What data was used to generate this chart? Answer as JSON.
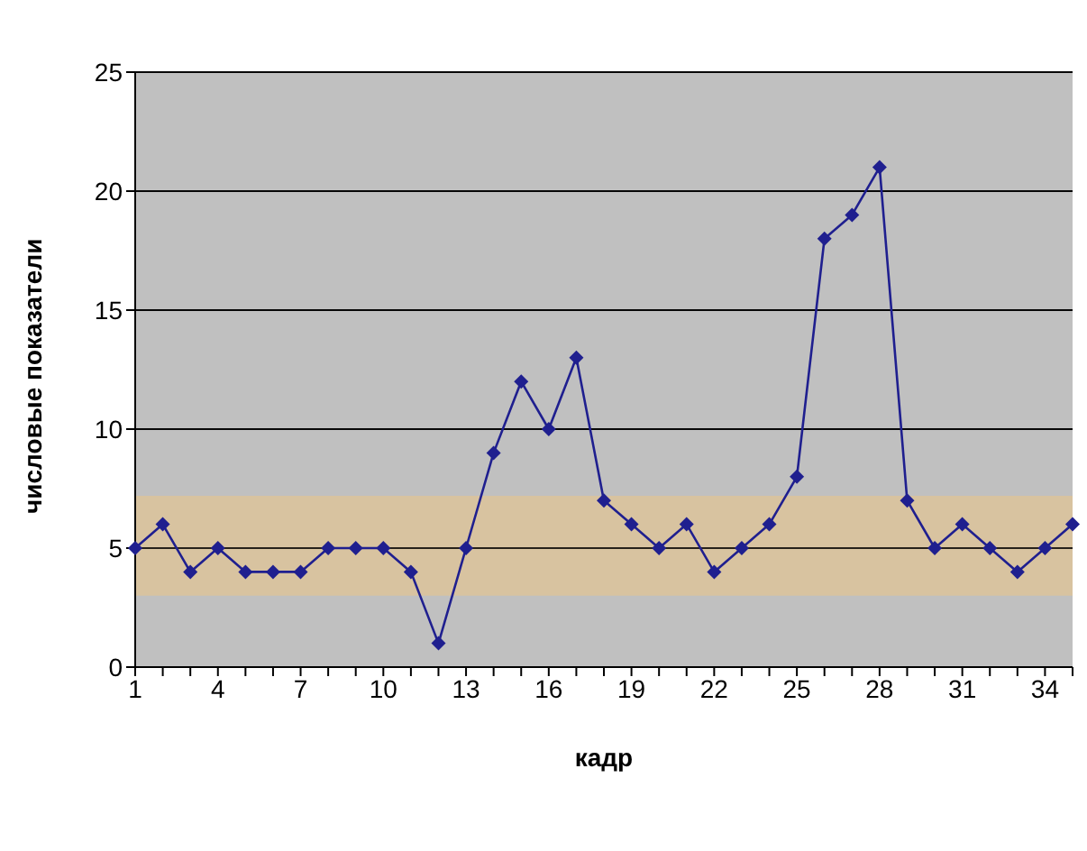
{
  "chart_data": {
    "type": "line",
    "xlabel": "кадр",
    "ylabel": "числовые показатели",
    "categories": [
      "1",
      null,
      null,
      "4",
      null,
      null,
      "7",
      null,
      null,
      "10",
      null,
      null,
      "13",
      null,
      null,
      "16",
      null,
      null,
      "19",
      null,
      null,
      "22",
      null,
      null,
      "25",
      null,
      null,
      "28",
      null,
      null,
      "31",
      null,
      null,
      "34",
      null
    ],
    "series": [
      {
        "color": "#1f1f8f",
        "values": [
          5,
          6,
          4,
          5,
          4,
          4,
          4,
          5,
          5,
          5,
          4,
          1,
          5,
          9,
          12,
          10,
          13,
          7,
          6,
          5,
          6,
          4,
          5,
          6,
          8,
          18,
          19,
          21,
          7,
          5,
          6,
          5,
          4,
          5,
          6
        ]
      }
    ],
    "ylim": [
      0,
      25
    ],
    "yticks": [
      0,
      5,
      10,
      15,
      20,
      25
    ],
    "grid": "y",
    "marker": "diamond",
    "line_style": "solid",
    "bands": [
      {
        "axis": "y",
        "from": 3,
        "to": 7.2,
        "color": "#dcc39a"
      }
    ]
  }
}
